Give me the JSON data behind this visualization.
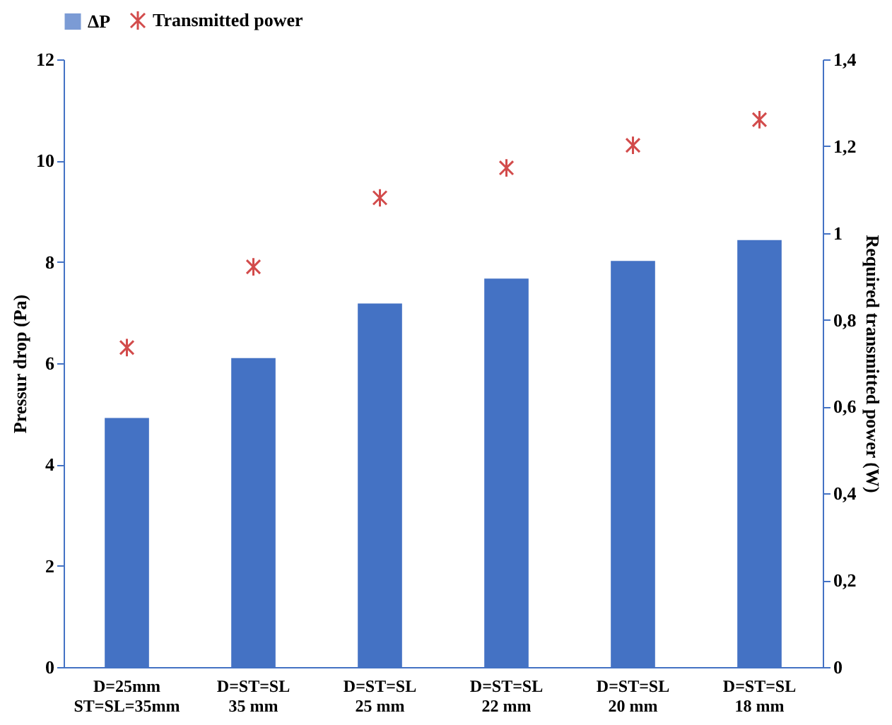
{
  "chart_data": {
    "type": "bar",
    "categories": [
      "D=25mm\nST=SL=35mm",
      "D=ST=SL\n35 mm",
      "D=ST=SL\n25 mm",
      "D=ST=SL\n22 mm",
      "D=ST=SL\n20 mm",
      "D=ST=SL\n18 mm"
    ],
    "series": [
      {
        "name": "ΔP",
        "color": "#4472c4",
        "values": [
          4.92,
          6.1,
          7.18,
          7.67,
          8.02,
          8.43
        ]
      },
      {
        "name": "Transmitted power",
        "type": "scatter",
        "axis": "y2",
        "marker": "cross",
        "color": "#c00000",
        "values": [
          0.736,
          0.922,
          1.081,
          1.15,
          1.202,
          1.261
        ]
      }
    ],
    "ylabel": "Pressur drop (Pa)",
    "y2label": "Required transmitted power (W)",
    "ylim": [
      0,
      12
    ],
    "yticks": [
      0,
      2,
      4,
      6,
      8,
      10,
      12
    ],
    "y2lim": [
      0,
      1.4
    ],
    "y2ticks": [
      0,
      {
        "value": 0.2,
        "label": "0,2"
      },
      {
        "value": 0.4,
        "label": "0,4"
      },
      {
        "value": 0.6,
        "label": "0,6"
      },
      {
        "value": 0.8,
        "label": "0,8"
      },
      1,
      {
        "value": 1.2,
        "label": "1,2"
      },
      {
        "value": 1.4,
        "label": "1,4"
      }
    ],
    "legend": "top",
    "grid": false
  }
}
